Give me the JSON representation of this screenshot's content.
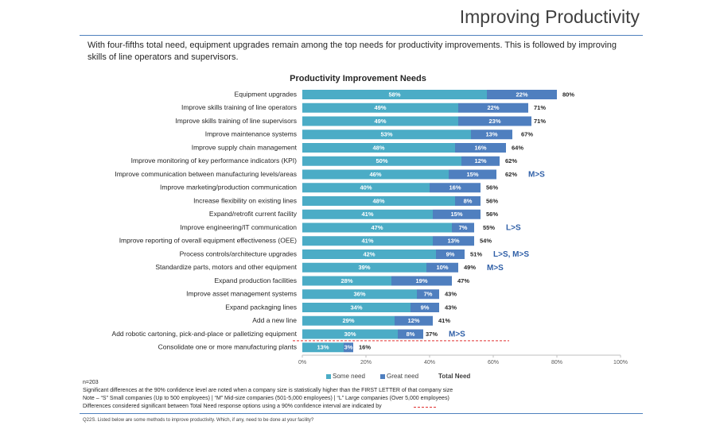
{
  "header": {
    "title": "Improving Productivity",
    "subtitle": "With four-fifths total need, equipment upgrades remain among the top needs for productivity improvements.  This is followed by improving skills of line operators and supervisors."
  },
  "chart_data": {
    "type": "stacked_barh",
    "title": "Productivity Improvement Needs",
    "categories": [
      "Equipment upgrades",
      "Improve skills training of line operators",
      "Improve skills training of line supervisors",
      "Improve maintenance systems",
      "Improve supply chain management",
      "Improve monitoring of key performance indicators (KPI)",
      "Improve communication between manufacturing levels/areas",
      "Improve marketing/production communication",
      "Increase flexibility on existing lines",
      "Expand/retrofit current facility",
      "Improve engineering/IT communication",
      "Improve reporting of overall equipment effectiveness (OEE)",
      "Process controls/architecture upgrades",
      "Standardize parts, motors and other equipment",
      "Expand production facilities",
      "Improve asset management systems",
      "Expand packaging lines",
      "Add a new line",
      "Add robotic cartoning, pick-and-place or palletizing equipment",
      "Consolidate one or more manufacturing plants"
    ],
    "series": [
      {
        "name": "Some need",
        "color": "#4bacc6",
        "values": [
          58,
          49,
          49,
          53,
          48,
          50,
          46,
          40,
          48,
          41,
          47,
          41,
          42,
          39,
          28,
          36,
          34,
          29,
          30,
          13
        ],
        "value_labels": [
          "58%",
          "49%",
          "49%",
          "53%",
          "48%",
          "50%",
          "46%",
          "40%",
          "48%",
          "41%",
          "47%",
          "41%",
          "42%",
          "39%",
          "28%",
          "36%",
          "34%",
          "29%",
          "30%",
          "13%"
        ]
      },
      {
        "name": "Great need",
        "color": "#4f7fbf",
        "values": [
          22,
          22,
          23,
          13,
          16,
          12,
          15,
          16,
          8,
          15,
          7,
          13,
          9,
          10,
          19,
          7,
          9,
          12,
          8,
          3
        ],
        "value_labels": [
          "22%",
          "22%",
          "23%",
          "13%",
          "16%",
          "12%",
          "15%",
          "16%",
          "8%",
          "15%",
          "7%",
          "13%",
          "9%",
          "10%",
          "19%",
          "7%",
          "9%",
          "12%",
          "8%",
          "3%"
        ]
      }
    ],
    "totals": {
      "name": "Total Need",
      "values": [
        80,
        71,
        71,
        67,
        64,
        62,
        62,
        56,
        56,
        56,
        55,
        54,
        51,
        49,
        47,
        43,
        43,
        41,
        37,
        16
      ],
      "value_labels": [
        "80%",
        "71%",
        "71%",
        "67%",
        "64%",
        "62%",
        "62%",
        "56%",
        "56%",
        "56%",
        "55%",
        "54%",
        "51%",
        "49%",
        "47%",
        "43%",
        "43%",
        "41%",
        "37%",
        "16%"
      ]
    },
    "significance": [
      null,
      null,
      null,
      null,
      null,
      null,
      "M>S",
      null,
      null,
      null,
      "L>S",
      null,
      "L>S, M>S",
      "M>S",
      null,
      null,
      null,
      null,
      "M>S",
      null
    ],
    "xlim": [
      0,
      100
    ],
    "xticks": [
      {
        "value": 0,
        "label": "0%"
      },
      {
        "value": 20,
        "label": "20%"
      },
      {
        "value": 40,
        "label": "40%"
      },
      {
        "value": 60,
        "label": "60%"
      },
      {
        "value": 80,
        "label": "80%"
      },
      {
        "value": 100,
        "label": "100%"
      }
    ]
  },
  "footnotes": [
    "n=203",
    "Significant differences at the 90% confidence level are noted when a company size is statistically higher than the FIRST LETTER of that company size",
    "Note – “S” Small companies (Up to 500 employees) | “M” Mid-size companies (501-5,000 employees) | “L” Large companies (Over 5,000 employees)",
    "Differences considered significant between Total Need response options using a 90% confidence interval are indicated by"
  ],
  "question": "Q22S. Listed below are some methods to improve productivity. Which, if any, need to be done at your facility?"
}
